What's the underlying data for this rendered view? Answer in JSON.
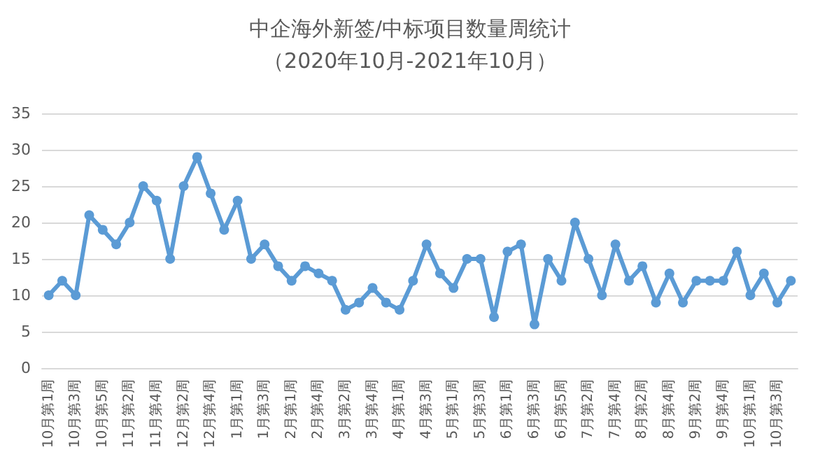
{
  "chart_data": {
    "type": "line",
    "title": "中企海外新签/中标项目数量周统计",
    "subtitle": "（2020年10月-2021年10月）",
    "categories": [
      "10月第1周",
      null,
      "10月第3周",
      null,
      "10月第5周",
      null,
      "11月第2周",
      null,
      "11月第4周",
      null,
      "12月第2周",
      null,
      "12月第4周",
      null,
      "1月第1周",
      null,
      "1月第3周",
      null,
      "2月第1周",
      null,
      "2月第4周",
      null,
      "3月第2周",
      null,
      "3月第4周",
      null,
      "4月第1周",
      null,
      "4月第3周",
      null,
      "5月第1周",
      null,
      "5月第3周",
      null,
      "6月第1周",
      null,
      "6月第3周",
      null,
      "6月第5周",
      null,
      "7月第2周",
      null,
      "7月第4周",
      null,
      "8月第2周",
      null,
      "8月第4周",
      null,
      "9月第2周",
      null,
      "9月第4周",
      null,
      "10月第1周",
      null,
      "10月第3周",
      null
    ],
    "series": [
      {
        "color": "#5b9bd5",
        "values": [
          10,
          12,
          10,
          21,
          19,
          17,
          20,
          25,
          23,
          15,
          25,
          29,
          24,
          19,
          23,
          15,
          17,
          14,
          12,
          14,
          13,
          12,
          8,
          9,
          11,
          9,
          8,
          12,
          17,
          13,
          11,
          15,
          15,
          7,
          16,
          17,
          6,
          15,
          12,
          20,
          15,
          10,
          17,
          12,
          14,
          9,
          13,
          9,
          12,
          12,
          12,
          16,
          10,
          13,
          9,
          12
        ]
      }
    ],
    "ylim": [
      0,
      35
    ],
    "yticks": [
      0,
      5,
      10,
      15,
      20,
      25,
      30,
      35
    ],
    "grid": "y",
    "marker": "circle",
    "line_style": "solid"
  }
}
